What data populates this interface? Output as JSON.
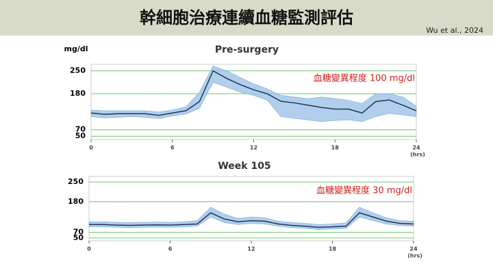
{
  "header": {
    "title": "幹細胞治療連續血糖監測評估",
    "citation": "Wu et al., 2024"
  },
  "chart_data": [
    {
      "type": "line",
      "title": "Pre-surgery",
      "y_label": "mg/dl",
      "x_label": "(hrs)",
      "annotation": "血糖變異程度 100 mg/dl",
      "annotation_color": "#d0201c",
      "x": [
        0,
        1,
        2,
        3,
        4,
        5,
        6,
        7,
        8,
        9,
        10,
        11,
        12,
        13,
        14,
        15,
        16,
        17,
        18,
        19,
        20,
        21,
        22,
        23,
        24
      ],
      "median": [
        121,
        117,
        119,
        119,
        119,
        114,
        121,
        128,
        156,
        250,
        227,
        208,
        192,
        180,
        157,
        152,
        145,
        138,
        133,
        133,
        121,
        156,
        161,
        145,
        128
      ],
      "band_low": [
        110,
        106,
        108,
        110,
        108,
        104,
        112,
        118,
        135,
        215,
        200,
        185,
        175,
        160,
        110,
        105,
        100,
        95,
        98,
        100,
        95,
        110,
        120,
        115,
        110
      ],
      "band_high": [
        130,
        128,
        128,
        128,
        128,
        124,
        130,
        140,
        185,
        265,
        250,
        230,
        210,
        195,
        175,
        170,
        165,
        170,
        165,
        160,
        150,
        180,
        180,
        170,
        142
      ],
      "line_color": "#1f3553",
      "band_color": "#9ec3e8",
      "xlim": [
        0,
        24
      ],
      "xticks": [
        0,
        6,
        12,
        18,
        24
      ],
      "ylim": [
        40,
        270
      ],
      "yticks": [
        50,
        70,
        180,
        250
      ],
      "grid_color": "#7fcf7f"
    },
    {
      "type": "line",
      "title": "Week 105",
      "x_label": "(hrs)",
      "annotation": "血糖變異程度 30 mg/dl",
      "annotation_color": "#d0201c",
      "x": [
        0,
        1,
        2,
        3,
        4,
        5,
        6,
        7,
        8,
        9,
        10,
        11,
        12,
        13,
        14,
        15,
        16,
        17,
        18,
        19,
        20,
        21,
        22,
        23,
        24
      ],
      "median": [
        98,
        98,
        96,
        95,
        96,
        97,
        96,
        98,
        100,
        140,
        118,
        108,
        112,
        110,
        100,
        95,
        92,
        88,
        90,
        92,
        140,
        125,
        110,
        102,
        100
      ],
      "band_low": [
        90,
        90,
        88,
        87,
        88,
        89,
        88,
        90,
        92,
        125,
        105,
        98,
        102,
        100,
        92,
        87,
        84,
        80,
        82,
        84,
        125,
        112,
        100,
        94,
        92
      ],
      "band_high": [
        108,
        108,
        106,
        105,
        106,
        107,
        106,
        108,
        112,
        160,
        135,
        120,
        125,
        122,
        110,
        105,
        102,
        98,
        100,
        104,
        160,
        140,
        122,
        112,
        110
      ],
      "line_color": "#1f3553",
      "band_color": "#9ec3e8",
      "xlim": [
        0,
        24
      ],
      "xticks": [
        0,
        6,
        12,
        18,
        24
      ],
      "ylim": [
        40,
        270
      ],
      "yticks": [
        50,
        70,
        180,
        250
      ],
      "grid_color": "#7fcf7f"
    }
  ]
}
